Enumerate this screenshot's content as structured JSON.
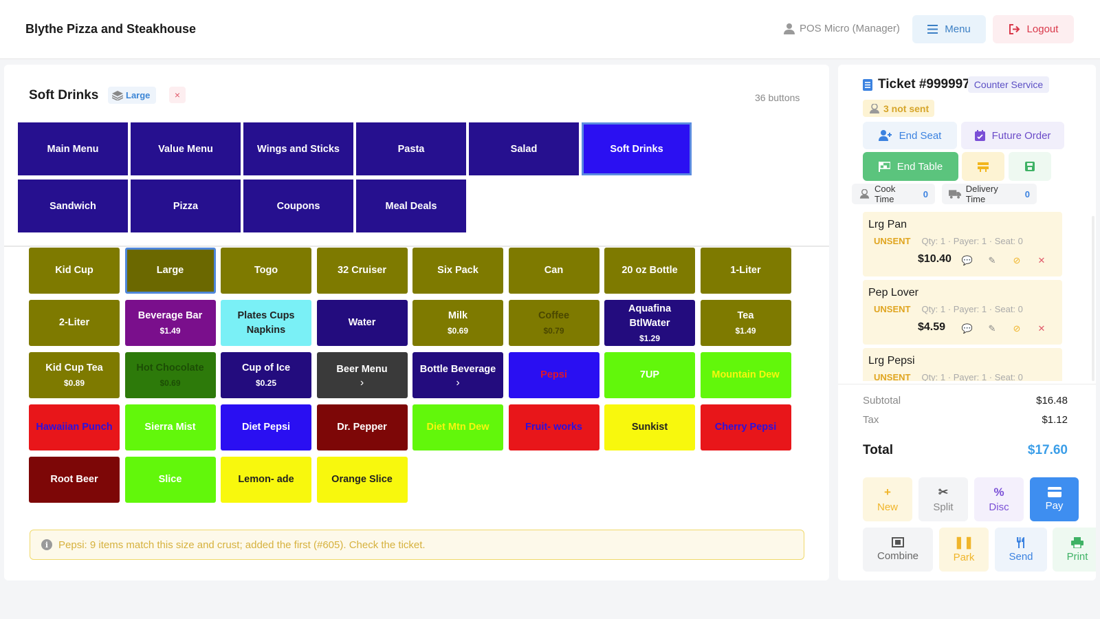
{
  "header": {
    "brand": "Blythe Pizza and Steakhouse",
    "user": "POS Micro (Manager)",
    "menu_label": "Menu",
    "logout_label": "Logout"
  },
  "panel": {
    "title": "Soft Drinks",
    "size_badge": "Large",
    "clear_icon": "×",
    "button_count": "36 buttons"
  },
  "categories": [
    "Main Menu",
    "Value Menu",
    "Wings and Sticks",
    "Pasta",
    "Salad",
    "Soft Drinks",
    "Sandwich",
    "Pizza",
    "Coupons",
    "Meal Deals"
  ],
  "active_category": "Soft Drinks",
  "items": [
    {
      "name": "Kid Cup",
      "price": "",
      "bg": "#7e7a00",
      "fg": "#ffffff"
    },
    {
      "name": "Large",
      "price": "",
      "bg": "#6b6800",
      "fg": "#ffffff",
      "selected": true
    },
    {
      "name": "Togo",
      "price": "",
      "bg": "#7e7a00",
      "fg": "#ffffff"
    },
    {
      "name": "32 Cruiser",
      "price": "",
      "bg": "#7e7a00",
      "fg": "#ffffff"
    },
    {
      "name": "Six Pack",
      "price": "",
      "bg": "#7e7a00",
      "fg": "#ffffff"
    },
    {
      "name": "Can",
      "price": "",
      "bg": "#7e7a00",
      "fg": "#ffffff"
    },
    {
      "name": "20 oz Bottle",
      "price": "",
      "bg": "#7e7a00",
      "fg": "#ffffff"
    },
    {
      "name": "1-Liter",
      "price": "",
      "bg": "#7e7a00",
      "fg": "#ffffff"
    },
    {
      "name": "2-Liter",
      "price": "",
      "bg": "#7e7a00",
      "fg": "#ffffff"
    },
    {
      "name": "Beverage Bar",
      "price": "$1.49",
      "bg": "#7a0f8c",
      "fg": "#ffffff"
    },
    {
      "name": "Plates Cups Napkins",
      "price": "",
      "bg": "#7af0f6",
      "fg": "#222222"
    },
    {
      "name": "Water",
      "price": "",
      "bg": "#230c7e",
      "fg": "#ffffff"
    },
    {
      "name": "Milk",
      "price": "$0.69",
      "bg": "#7e7a00",
      "fg": "#ffffff"
    },
    {
      "name": "Coffee",
      "price": "$0.79",
      "bg": "#7e7a00",
      "fg": "#4a4700"
    },
    {
      "name": "Aquafina BtlWater",
      "price": "$1.29",
      "bg": "#230c7e",
      "fg": "#ffffff"
    },
    {
      "name": "Tea",
      "price": "$1.49",
      "bg": "#7e7a00",
      "fg": "#ffffff"
    },
    {
      "name": "Kid Cup Tea",
      "price": "$0.89",
      "bg": "#7e7a00",
      "fg": "#ffffff"
    },
    {
      "name": "Hot Chocolate",
      "price": "$0.69",
      "bg": "#2d7a0a",
      "fg": "#1c4e05"
    },
    {
      "name": "Cup of Ice",
      "price": "$0.25",
      "bg": "#230c7e",
      "fg": "#ffffff"
    },
    {
      "name": "Beer Menu",
      "price": "",
      "bg": "#3a3a3a",
      "fg": "#ffffff",
      "submenu": true
    },
    {
      "name": "Bottle Beverage",
      "price": "",
      "bg": "#230c7e",
      "fg": "#ffffff",
      "submenu": true
    },
    {
      "name": "Pepsi",
      "price": "",
      "bg": "#2a0ff2",
      "fg": "#e0152a"
    },
    {
      "name": "7UP",
      "price": "",
      "bg": "#62f70b",
      "fg": "#ffffff"
    },
    {
      "name": "Mountain Dew",
      "price": "",
      "bg": "#62f70b",
      "fg": "#f6f60f"
    },
    {
      "name": "Hawaiian Punch",
      "price": "",
      "bg": "#e8161a",
      "fg": "#2a10e0"
    },
    {
      "name": "Sierra Mist",
      "price": "",
      "bg": "#62f70b",
      "fg": "#ffffff"
    },
    {
      "name": "Diet Pepsi",
      "price": "",
      "bg": "#2a0ff2",
      "fg": "#ffffff"
    },
    {
      "name": "Dr. Pepper",
      "price": "",
      "bg": "#7d0707",
      "fg": "#ffffff"
    },
    {
      "name": "Diet Mtn Dew",
      "price": "",
      "bg": "#62f70b",
      "fg": "#f6f60f"
    },
    {
      "name": "Fruit- works",
      "price": "",
      "bg": "#e8161a",
      "fg": "#2a10e0"
    },
    {
      "name": "Sunkist",
      "price": "",
      "bg": "#f8f80d",
      "fg": "#222222"
    },
    {
      "name": "Cherry Pepsi",
      "price": "",
      "bg": "#e8161a",
      "fg": "#2a10e0"
    },
    {
      "name": "Root Beer",
      "price": "",
      "bg": "#7d0707",
      "fg": "#ffffff"
    },
    {
      "name": "Slice",
      "price": "",
      "bg": "#62f70b",
      "fg": "#ffffff"
    },
    {
      "name": "Lemon- ade",
      "price": "",
      "bg": "#f8f80d",
      "fg": "#222222"
    },
    {
      "name": "Orange Slice",
      "price": "",
      "bg": "#f8f80d",
      "fg": "#222222"
    }
  ],
  "notice": "Pepsi: 9 items match this size and crust; added the first (#605). Check the ticket.",
  "ticket": {
    "title": "Ticket #999997",
    "service": "Counter Service",
    "not_sent": "3 not sent",
    "end_seat": "End Seat",
    "future_order": "Future Order",
    "end_table": "End Table",
    "cook_time_label": "Cook Time",
    "cook_time": "0",
    "delivery_time_label": "Delivery Time",
    "delivery_time": "0",
    "orders": [
      {
        "name": "Lrg Pan",
        "status": "UNSENT",
        "qty": "Qty: 1",
        "payer": "Payer: 1",
        "seat": "Seat: 0",
        "price": "$10.40"
      },
      {
        "name": "Pep Lover",
        "status": "UNSENT",
        "qty": "Qty: 1",
        "payer": "Payer: 1",
        "seat": "Seat: 0",
        "price": "$4.59"
      },
      {
        "name": "Lrg Pepsi",
        "status": "UNSENT",
        "qty": "Qty: 1",
        "payer": "Payer: 1",
        "seat": "Seat: 0",
        "price": ""
      }
    ],
    "subtotal_label": "Subtotal",
    "subtotal": "$16.48",
    "tax_label": "Tax",
    "tax": "$1.12",
    "total_label": "Total",
    "total": "$17.60",
    "actions": {
      "new": "New",
      "split": "Split",
      "disc": "Disc",
      "pay": "Pay",
      "combine": "Combine",
      "park": "Park",
      "send": "Send",
      "print": "Print"
    }
  },
  "colors": {
    "accent": "#3b9ee8",
    "category": "#26108f",
    "category_active": "#2b10f2"
  }
}
